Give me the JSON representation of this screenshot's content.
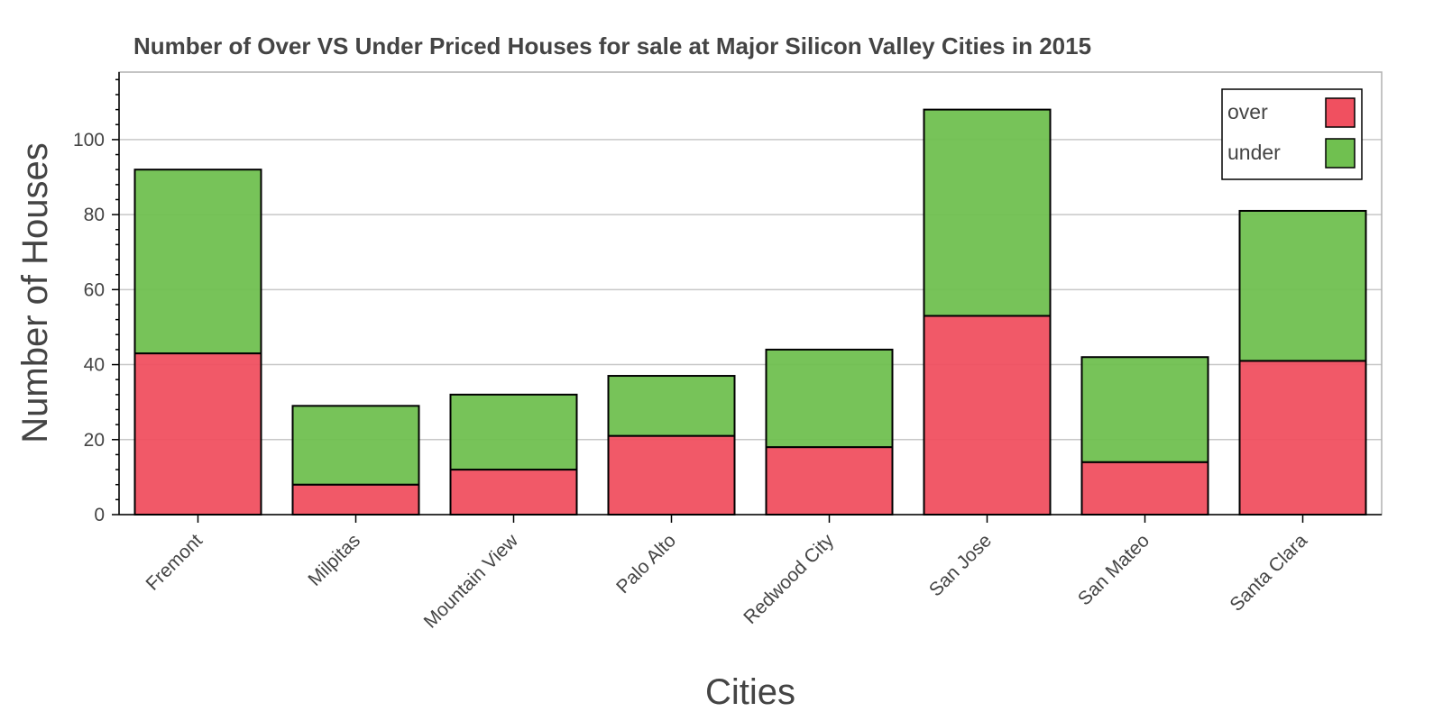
{
  "chart_data": {
    "type": "bar",
    "stacked": true,
    "title": "Number of Over VS Under Priced Houses for sale at Major Silicon Valley Cities in 2015",
    "xlabel": "Cities",
    "ylabel": "Number of Houses",
    "categories": [
      "Fremont",
      "Milpitas",
      "Mountain View",
      "Palo Alto",
      "Redwood City",
      "San Jose",
      "San Mateo",
      "Santa Clara"
    ],
    "series": [
      {
        "name": "over",
        "color": "#f05060",
        "values": [
          43,
          8,
          12,
          21,
          18,
          53,
          14,
          41
        ]
      },
      {
        "name": "under",
        "color": "#70c050",
        "values": [
          49,
          21,
          20,
          16,
          26,
          55,
          28,
          40
        ]
      }
    ],
    "ylim": [
      0,
      118
    ],
    "yticks": [
      0,
      20,
      40,
      60,
      80,
      100
    ],
    "grid": true,
    "legend_position": "top-right"
  }
}
